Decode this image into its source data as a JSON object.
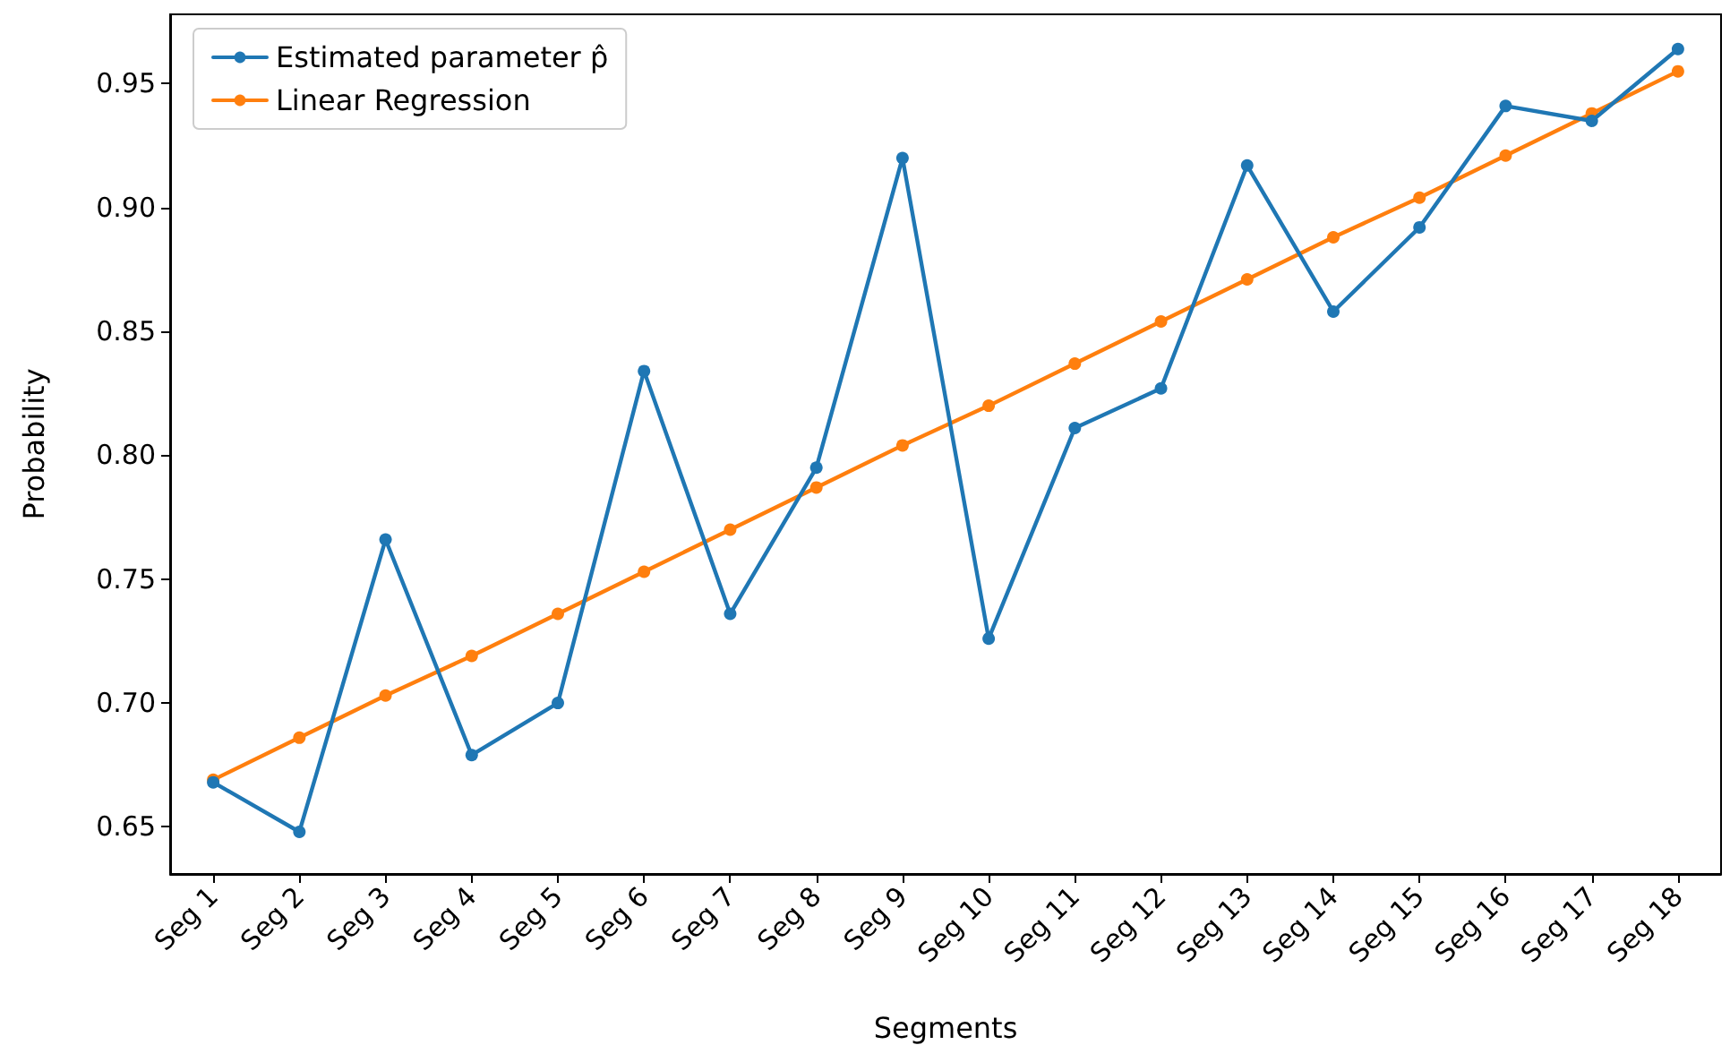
{
  "chart_data": {
    "type": "line",
    "xlabel": "Segments",
    "ylabel": "Probability",
    "categories": [
      "Seg 1",
      "Seg 2",
      "Seg 3",
      "Seg 4",
      "Seg 5",
      "Seg 6",
      "Seg 7",
      "Seg 8",
      "Seg 9",
      "Seg 10",
      "Seg 11",
      "Seg 12",
      "Seg 13",
      "Seg 14",
      "Seg 15",
      "Seg 16",
      "Seg 17",
      "Seg 18"
    ],
    "series": [
      {
        "name": "Estimated parameter p̂",
        "color": "#1f77b4",
        "values": [
          0.668,
          0.648,
          0.766,
          0.679,
          0.7,
          0.834,
          0.736,
          0.795,
          0.92,
          0.726,
          0.811,
          0.827,
          0.917,
          0.858,
          0.892,
          0.941,
          0.935,
          0.964
        ]
      },
      {
        "name": "Linear Regression",
        "color": "#ff7f0e",
        "values": [
          0.669,
          0.686,
          0.703,
          0.719,
          0.736,
          0.753,
          0.77,
          0.787,
          0.804,
          0.82,
          0.837,
          0.854,
          0.871,
          0.888,
          0.904,
          0.921,
          0.938,
          0.955
        ]
      }
    ],
    "ylim": [
      0.631,
      0.978
    ],
    "yticks": [
      {
        "value": 0.65,
        "label": "0.65"
      },
      {
        "value": 0.7,
        "label": "0.70"
      },
      {
        "value": 0.75,
        "label": "0.75"
      },
      {
        "value": 0.8,
        "label": "0.80"
      },
      {
        "value": 0.85,
        "label": "0.85"
      },
      {
        "value": 0.9,
        "label": "0.90"
      },
      {
        "value": 0.95,
        "label": "0.95"
      }
    ],
    "grid": false,
    "legend": "top left",
    "marker": "circle",
    "line_style": "solid"
  }
}
